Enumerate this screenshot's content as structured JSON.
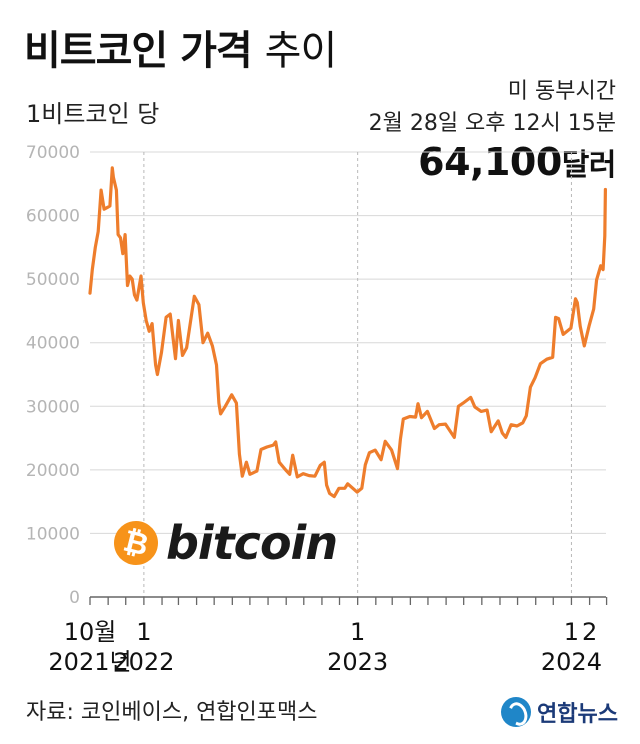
{
  "title": {
    "bold": "비트코인 가격",
    "light": "추이"
  },
  "unit_label": "1비트코인 당",
  "timestamp": {
    "line1": "미 동부시간",
    "line2": "2월 28일 오후 12시 15분"
  },
  "current_price": {
    "value": "64,100",
    "unit": "달러"
  },
  "logo": {
    "icon": "bitcoin-icon",
    "wordmark": "bitcoin",
    "symbol": "₿"
  },
  "source": "자료: 코인베이스, 연합인포맥스",
  "agency": "연합뉴스",
  "colors": {
    "line": "#ee7d2c",
    "grid": "#d8d8d8",
    "btc": "#f7931a"
  },
  "chart_data": {
    "type": "line",
    "series_name": "",
    "ylim": [
      0,
      70000
    ],
    "y_ticks": [
      "0",
      "10000",
      "20000",
      "30000",
      "40000",
      "50000",
      "60000",
      "70000"
    ],
    "x_start": "2021-10",
    "x_end": "2024-02",
    "x_labels": [
      {
        "month": "2021-10",
        "top": "10월",
        "bottom": "2021년"
      },
      {
        "month": "2022-01",
        "top": "1",
        "bottom": "2022"
      },
      {
        "month": "2023-01",
        "top": "1",
        "bottom": "2023"
      },
      {
        "month": "2024-01",
        "top": "1",
        "bottom": "2024"
      },
      {
        "month": "2024-02",
        "top": "2",
        "bottom": ""
      }
    ],
    "points": [
      [
        "2021-10-01",
        47800
      ],
      [
        "2021-10-05",
        51500
      ],
      [
        "2021-10-10",
        55000
      ],
      [
        "2021-10-15",
        57500
      ],
      [
        "2021-10-20",
        64000
      ],
      [
        "2021-10-25",
        61000
      ],
      [
        "2021-10-31",
        61300
      ],
      [
        "2021-11-04",
        61500
      ],
      [
        "2021-11-08",
        67500
      ],
      [
        "2021-11-10",
        66000
      ],
      [
        "2021-11-15",
        64000
      ],
      [
        "2021-11-18",
        57000
      ],
      [
        "2021-11-22",
        56500
      ],
      [
        "2021-11-26",
        54000
      ],
      [
        "2021-11-30",
        57000
      ],
      [
        "2021-12-04",
        49000
      ],
      [
        "2021-12-08",
        50500
      ],
      [
        "2021-12-12",
        50000
      ],
      [
        "2021-12-16",
        47500
      ],
      [
        "2021-12-20",
        46700
      ],
      [
        "2021-12-27",
        50500
      ],
      [
        "2021-12-31",
        46300
      ],
      [
        "2022-01-05",
        43500
      ],
      [
        "2022-01-10",
        41800
      ],
      [
        "2022-01-15",
        43000
      ],
      [
        "2022-01-21",
        36500
      ],
      [
        "2022-01-24",
        35000
      ],
      [
        "2022-01-31",
        38500
      ],
      [
        "2022-02-08",
        44000
      ],
      [
        "2022-02-15",
        44500
      ],
      [
        "2022-02-24",
        37500
      ],
      [
        "2022-03-01",
        43500
      ],
      [
        "2022-03-08",
        38000
      ],
      [
        "2022-03-15",
        39200
      ],
      [
        "2022-03-28",
        47300
      ],
      [
        "2022-04-05",
        46000
      ],
      [
        "2022-04-12",
        40000
      ],
      [
        "2022-04-20",
        41500
      ],
      [
        "2022-04-28",
        39500
      ],
      [
        "2022-05-05",
        36500
      ],
      [
        "2022-05-09",
        30500
      ],
      [
        "2022-05-12",
        28800
      ],
      [
        "2022-05-20",
        30000
      ],
      [
        "2022-05-31",
        31800
      ],
      [
        "2022-06-08",
        30500
      ],
      [
        "2022-06-13",
        22500
      ],
      [
        "2022-06-18",
        19000
      ],
      [
        "2022-06-25",
        21200
      ],
      [
        "2022-07-01",
        19300
      ],
      [
        "2022-07-13",
        19800
      ],
      [
        "2022-07-20",
        23200
      ],
      [
        "2022-07-30",
        23600
      ],
      [
        "2022-08-10",
        23900
      ],
      [
        "2022-08-14",
        24400
      ],
      [
        "2022-08-20",
        21200
      ],
      [
        "2022-08-31",
        20000
      ],
      [
        "2022-09-07",
        19300
      ],
      [
        "2022-09-12",
        22300
      ],
      [
        "2022-09-20",
        18900
      ],
      [
        "2022-09-30",
        19400
      ],
      [
        "2022-10-10",
        19100
      ],
      [
        "2022-10-20",
        19000
      ],
      [
        "2022-10-29",
        20700
      ],
      [
        "2022-11-05",
        21200
      ],
      [
        "2022-11-09",
        17600
      ],
      [
        "2022-11-14",
        16300
      ],
      [
        "2022-11-22",
        15800
      ],
      [
        "2022-11-30",
        17100
      ],
      [
        "2022-12-10",
        17100
      ],
      [
        "2022-12-15",
        17800
      ],
      [
        "2022-12-31",
        16500
      ],
      [
        "2023-01-08",
        17100
      ],
      [
        "2023-01-14",
        20800
      ],
      [
        "2023-01-21",
        22700
      ],
      [
        "2023-01-31",
        23100
      ],
      [
        "2023-02-10",
        21600
      ],
      [
        "2023-02-17",
        24500
      ],
      [
        "2023-02-28",
        23100
      ],
      [
        "2023-03-10",
        20200
      ],
      [
        "2023-03-15",
        24800
      ],
      [
        "2023-03-20",
        28000
      ],
      [
        "2023-03-31",
        28400
      ],
      [
        "2023-04-10",
        28300
      ],
      [
        "2023-04-14",
        30400
      ],
      [
        "2023-04-20",
        28200
      ],
      [
        "2023-04-30",
        29200
      ],
      [
        "2023-05-12",
        26500
      ],
      [
        "2023-05-20",
        27100
      ],
      [
        "2023-05-31",
        27200
      ],
      [
        "2023-06-10",
        25800
      ],
      [
        "2023-06-15",
        25100
      ],
      [
        "2023-06-22",
        30000
      ],
      [
        "2023-06-30",
        30500
      ],
      [
        "2023-07-13",
        31400
      ],
      [
        "2023-07-20",
        29900
      ],
      [
        "2023-07-31",
        29200
      ],
      [
        "2023-08-10",
        29400
      ],
      [
        "2023-08-17",
        26000
      ],
      [
        "2023-08-29",
        27700
      ],
      [
        "2023-09-05",
        25800
      ],
      [
        "2023-09-11",
        25100
      ],
      [
        "2023-09-20",
        27100
      ],
      [
        "2023-09-30",
        26900
      ],
      [
        "2023-10-10",
        27400
      ],
      [
        "2023-10-16",
        28500
      ],
      [
        "2023-10-23",
        33000
      ],
      [
        "2023-10-31",
        34500
      ],
      [
        "2023-11-09",
        36700
      ],
      [
        "2023-11-20",
        37400
      ],
      [
        "2023-11-30",
        37700
      ],
      [
        "2023-12-05",
        44000
      ],
      [
        "2023-12-10",
        43800
      ],
      [
        "2023-12-18",
        41300
      ],
      [
        "2023-12-31",
        42300
      ],
      [
        "2024-01-08",
        46900
      ],
      [
        "2024-01-11",
        46300
      ],
      [
        "2024-01-16",
        42600
      ],
      [
        "2024-01-23",
        39500
      ],
      [
        "2024-01-31",
        42600
      ],
      [
        "2024-02-08",
        45300
      ],
      [
        "2024-02-13",
        49900
      ],
      [
        "2024-02-20",
        52100
      ],
      [
        "2024-02-24",
        51500
      ],
      [
        "2024-02-27",
        56800
      ],
      [
        "2024-02-28",
        64100
      ]
    ]
  }
}
